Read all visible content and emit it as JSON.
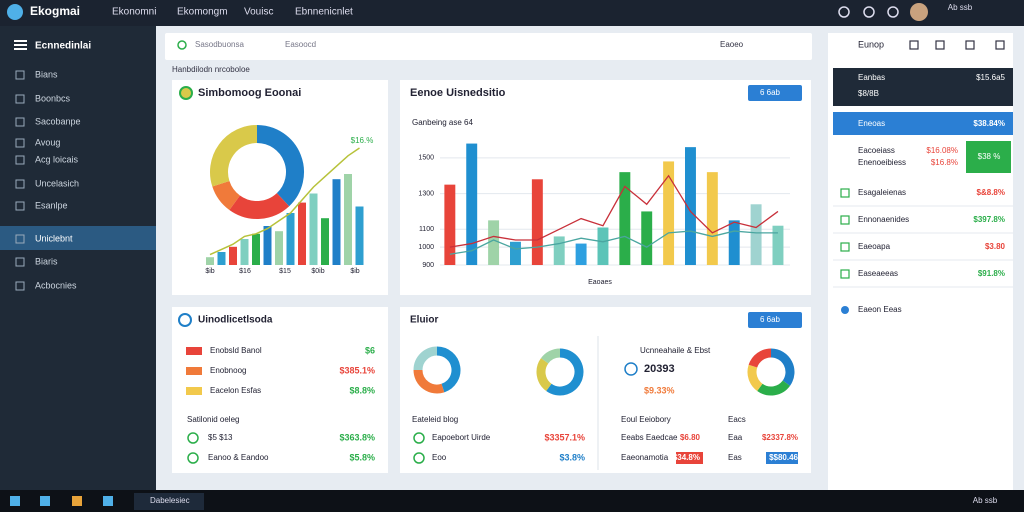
{
  "topbar": {
    "brand": "Ekogmai",
    "nav": [
      "Ekonomni",
      "Ekomongm",
      "Vouisc",
      "Ebnnenicnlet"
    ],
    "user": "Ab ssb"
  },
  "sidebar": {
    "title": "Ecnnedinlai",
    "items": [
      "Bians",
      "Boonbcs",
      "Sacobanpe",
      "Avoug",
      "Acg loicais",
      "Uncelasich",
      "Esanlpe",
      "Uniclebnt",
      "Biaris",
      "Acbocnies"
    ],
    "active": 7
  },
  "search": {
    "placeholder": "Sasodbuonsa",
    "filter": "Easoocd",
    "action": "Eaoeo"
  },
  "section_label": "Hanbdilodn nrcoboloe",
  "card1": {
    "title": "Simbomoog Eoonai",
    "annotation": "$16.%",
    "x_labels": [
      "$ib",
      "$16",
      "$15",
      "$0ib",
      "$ib"
    ],
    "chart": {
      "type": "bar",
      "ylim": [
        0,
        100
      ],
      "values": [
        6,
        10,
        14,
        20,
        24,
        30,
        26,
        40,
        48,
        55,
        36,
        66,
        70,
        45
      ],
      "line": [
        8,
        12,
        16,
        22,
        24,
        28,
        34,
        40,
        50,
        60,
        68,
        76,
        84,
        90
      ],
      "donut": [
        38,
        22,
        10,
        30
      ],
      "donut_colors": [
        "#1f7fc8",
        "#e8443a",
        "#f07a3a",
        "#d9c94a"
      ]
    }
  },
  "card2": {
    "title": "Eenoe Uisnedsitio",
    "button": "6 6ab",
    "subtitle": "Ganbeing ase 64",
    "x_label": "Eaoaes",
    "chart": {
      "type": "bar",
      "ylim": [
        900,
        1600
      ],
      "yticks": [
        1500,
        1300,
        1100,
        1000,
        900
      ],
      "values": [
        1350,
        1580,
        1150,
        1030,
        1380,
        1060,
        1020,
        1110,
        1420,
        1200,
        1480,
        1560,
        1420,
        1150,
        1240,
        1120
      ],
      "colors": [
        "#e8443a",
        "#1f8fd0",
        "#9fd3a8",
        "#2e9fd0",
        "#e8443a",
        "#7fcfc0",
        "#2ea0e0",
        "#5cc4b8",
        "#2bae4a",
        "#2bae4a",
        "#f2c94c",
        "#1f8fd0",
        "#f2c94c",
        "#1f8fd0",
        "#9fd3d0",
        "#7fcfc0"
      ],
      "line_red": [
        1000,
        1020,
        1060,
        1040,
        1040,
        1100,
        1160,
        1120,
        1340,
        1240,
        1400,
        1200,
        1080,
        1140,
        1110,
        1200
      ],
      "line_teal": [
        960,
        980,
        1040,
        990,
        1000,
        1020,
        1050,
        1030,
        1060,
        1000,
        1080,
        1090,
        1060,
        1090,
        1080,
        1080
      ]
    }
  },
  "card3": {
    "title": "Uinodlicetlsoda",
    "rows": [
      [
        "Enobsld Banol",
        "$6"
      ],
      [
        "Enobnoog",
        "$385.1%"
      ],
      [
        "Eacelon Esfas",
        "$8.8%"
      ]
    ],
    "section": "Satilonid oeleg",
    "rows2": [
      [
        "$5 $13",
        "$363.8%"
      ],
      [
        "Eanoo & Eandoo",
        "$5.8%"
      ]
    ]
  },
  "card4": {
    "title": "Eluior",
    "button": "6 6ab",
    "left": {
      "label": "Eateleid blog",
      "rows": [
        [
          "Eapoebort Uirde",
          "$3357.1%"
        ],
        [
          "Eoo",
          "$3.8%"
        ]
      ]
    },
    "right": {
      "head": "Ucnneahaile & Ebst",
      "big": "20393",
      "pct": "$9.33%",
      "label": "Eoul Eeiobory",
      "label2": "Eacs",
      "rows": [
        [
          "Eeabs Eaedcae",
          "$6.80",
          "Eaa",
          "$2337.8%"
        ],
        [
          "Eaeonamotia",
          "$34.8%",
          "Eas",
          "$$80.46"
        ]
      ]
    },
    "donuts": [
      [
        45,
        30,
        25
      ],
      [
        60,
        25,
        15
      ],
      [
        35,
        25,
        20,
        20
      ]
    ]
  },
  "right_panel": {
    "title": "Eunop",
    "header": {
      "label": "Eanbas",
      "value": "$15.6a5",
      "sub": "$8/8B"
    },
    "blue_row": {
      "label": "Eneoas",
      "value": "$38.84%"
    },
    "stat": {
      "label": "Eacoeiass",
      "label2": "Enenoeibiess",
      "value": "$16.08%",
      "value2": "$16.8%",
      "badge": "$38 %"
    },
    "rows": [
      [
        "Esagaleienas",
        "$&8.8%"
      ],
      [
        "Ennonaenides",
        "$397.8%"
      ],
      [
        "Eaeoapa",
        "$3.80"
      ],
      [
        "Easeaeeas",
        "$91.8%"
      ]
    ],
    "footer": "Eaeon Eeas"
  },
  "taskbar": {
    "app": "Dabelesiec",
    "time": "Ab ssb"
  }
}
